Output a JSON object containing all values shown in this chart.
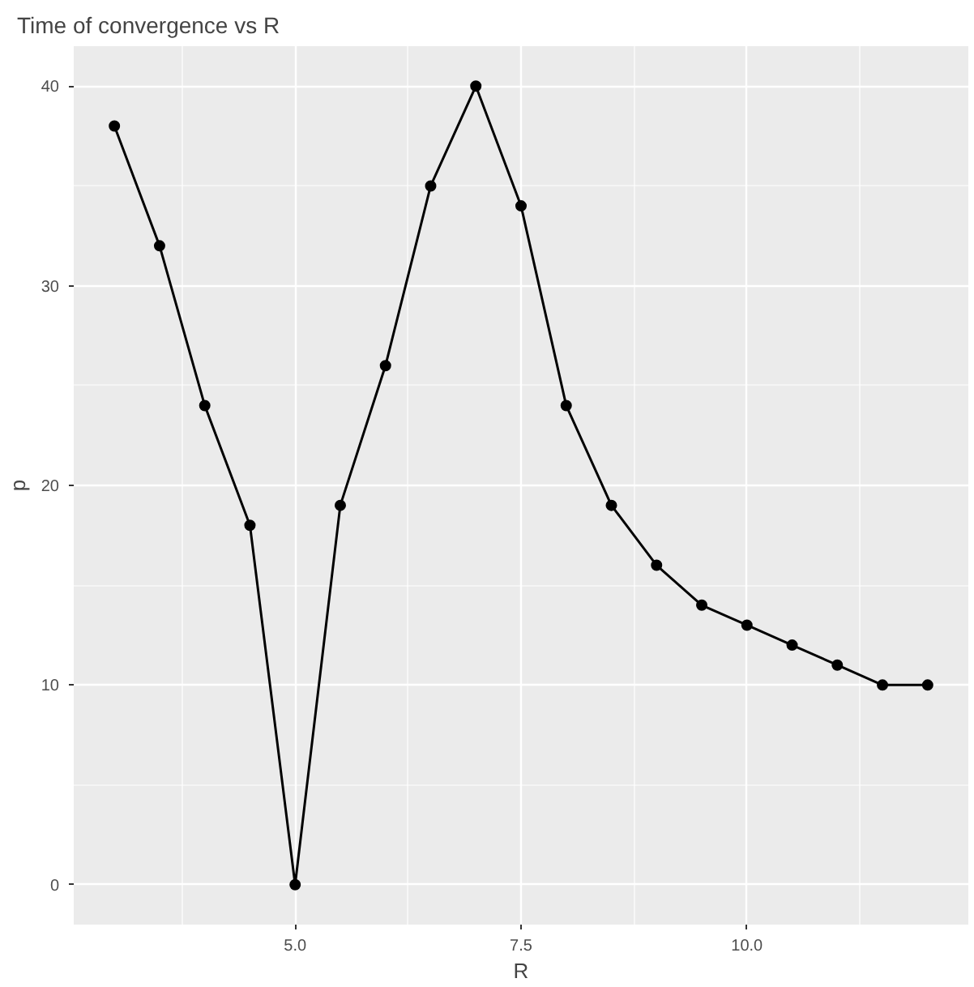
{
  "chart_data": {
    "type": "line",
    "title": "Time of convergence vs R",
    "xlabel": "R",
    "ylabel": "p",
    "x": [
      3,
      3.5,
      4,
      4.5,
      5,
      5.5,
      6,
      6.5,
      7,
      7.5,
      8,
      8.5,
      9,
      9.5,
      10,
      10.5,
      11,
      11.5,
      12
    ],
    "series": [
      {
        "color": "#000000",
        "values": [
          38,
          32,
          24,
          18,
          0,
          19,
          26,
          35,
          40,
          34,
          24,
          19,
          16,
          14,
          13,
          12,
          11,
          10,
          10
        ]
      }
    ],
    "xlim": [
      2.55,
      12.45
    ],
    "ylim": [
      -2,
      42
    ],
    "xticks": [
      {
        "value": 5,
        "label": "5.0"
      },
      {
        "value": 7.5,
        "label": "7.5"
      },
      {
        "value": 10,
        "label": "10.0"
      }
    ],
    "yticks": [
      0,
      10,
      20,
      30,
      40
    ],
    "grid": true,
    "marker": "circle",
    "line_style": "solid"
  }
}
